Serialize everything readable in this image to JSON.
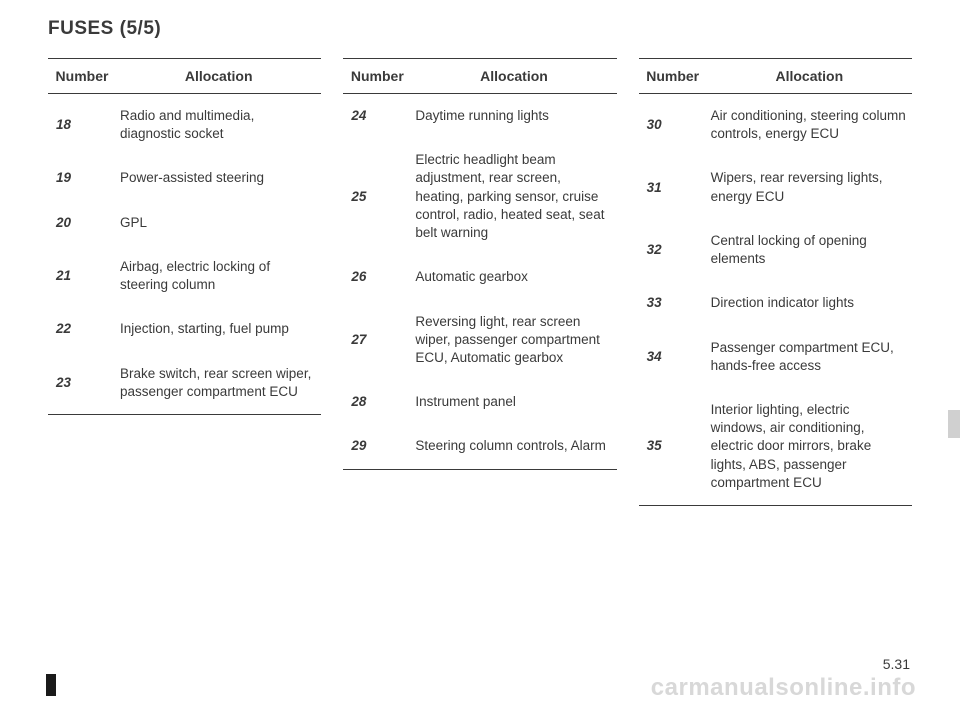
{
  "title_main": "FUSES",
  "title_part": "(5/5)",
  "header_number": "Number",
  "header_allocation": "Allocation",
  "cols": [
    {
      "rows": [
        {
          "num": "18",
          "alloc": "Radio and multimedia,\ndiagnostic socket"
        },
        {
          "num": "19",
          "alloc": "Power-assisted steering"
        },
        {
          "num": "20",
          "alloc": "GPL"
        },
        {
          "num": "21",
          "alloc": "Airbag,\nelectric locking of steering column"
        },
        {
          "num": "22",
          "alloc": "Injection,\nstarting,\nfuel pump"
        },
        {
          "num": "23",
          "alloc": "Brake switch,\nrear screen wiper,\npassenger compartment ECU"
        }
      ]
    },
    {
      "rows": [
        {
          "num": "24",
          "alloc": "Daytime running lights"
        },
        {
          "num": "25",
          "alloc": "Electric headlight beam adjustment,\nrear screen,\nheating,\nparking sensor,\ncruise control,\nradio,\nheated seat,\nseat belt warning"
        },
        {
          "num": "26",
          "alloc": "Automatic gearbox"
        },
        {
          "num": "27",
          "alloc": "Reversing light,\nrear screen wiper,\npassenger compartment ECU,\nAutomatic gearbox"
        },
        {
          "num": "28",
          "alloc": "Instrument panel"
        },
        {
          "num": "29",
          "alloc": "Steering column controls,\nAlarm"
        }
      ]
    },
    {
      "rows": [
        {
          "num": "30",
          "alloc": "Air conditioning,\nsteering column controls,\nenergy ECU"
        },
        {
          "num": "31",
          "alloc": "Wipers,\nrear reversing lights,\nenergy ECU"
        },
        {
          "num": "32",
          "alloc": "Central locking of opening elements"
        },
        {
          "num": "33",
          "alloc": "Direction indicator lights"
        },
        {
          "num": "34",
          "alloc": "Passenger compartment ECU,\nhands-free access"
        },
        {
          "num": "35",
          "alloc": "Interior lighting,\nelectric windows,\nair conditioning,\nelectric door mirrors,\nbrake lights,\nABS,\npassenger compartment ECU"
        }
      ]
    }
  ],
  "page_number": "5.31",
  "watermark": "carmanualsonline.info"
}
